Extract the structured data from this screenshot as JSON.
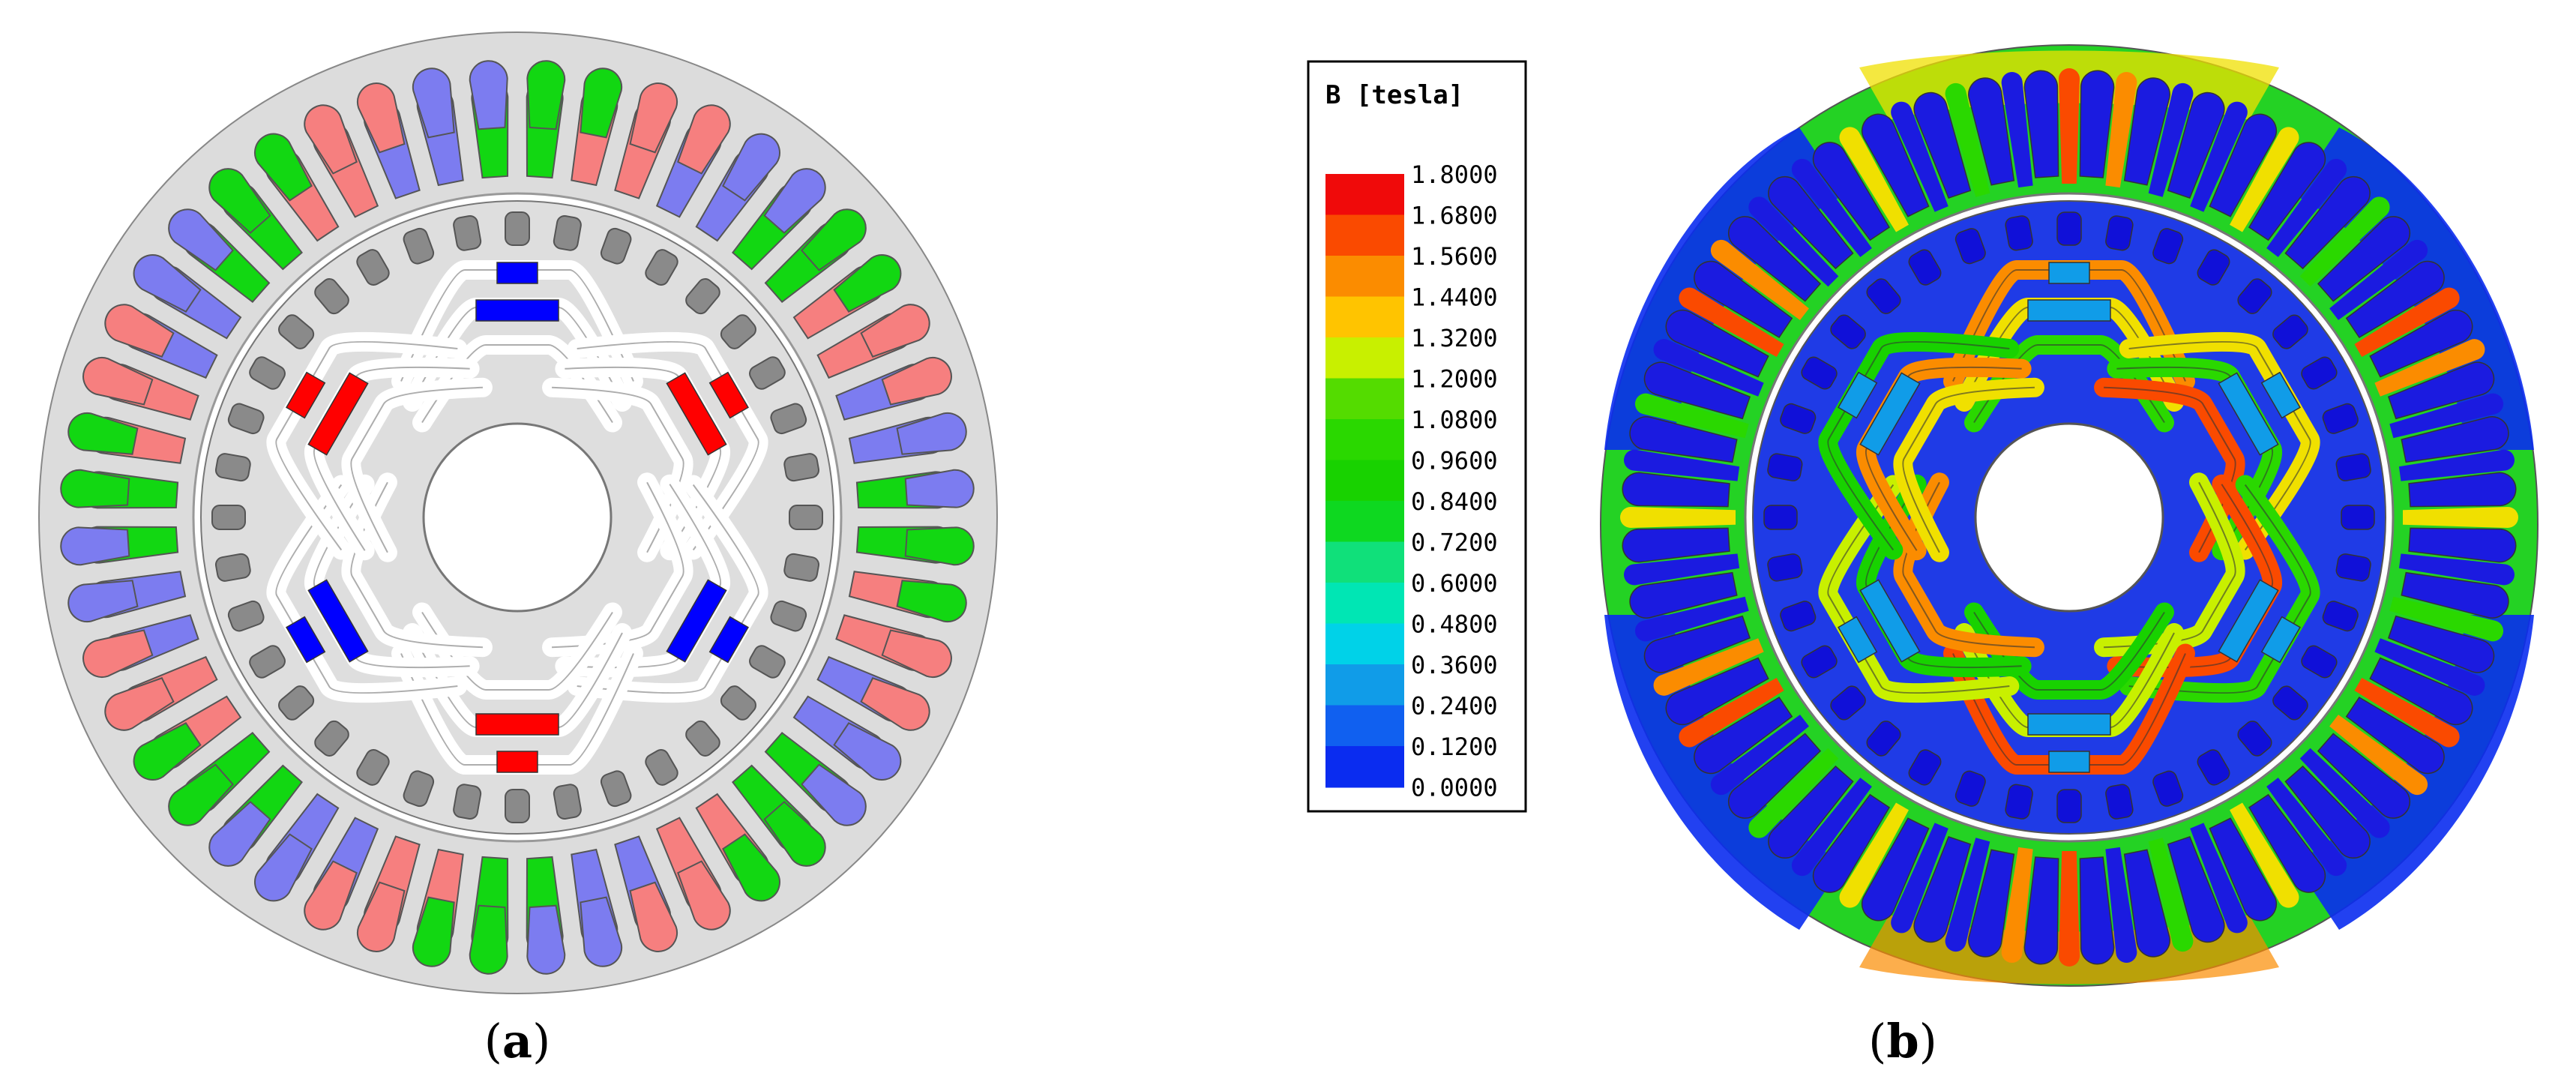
{
  "panels": [
    {
      "label_open": "(",
      "label_letter": "a",
      "label_close": ")"
    },
    {
      "label_open": "(",
      "label_letter": "b",
      "label_close": ")"
    }
  ],
  "legend": {
    "title": "B [tesla]",
    "ticks": [
      "1.8000",
      "1.6800",
      "1.5600",
      "1.4400",
      "1.3200",
      "1.2000",
      "1.0800",
      "0.9600",
      "0.8400",
      "0.7200",
      "0.6000",
      "0.4800",
      "0.3600",
      "0.2400",
      "0.1200",
      "0.0000"
    ],
    "colors": [
      "#f00a0a",
      "#fa4a00",
      "#fb8c00",
      "#ffc400",
      "#c8f000",
      "#54dc00",
      "#2ad800",
      "#18d200",
      "#0ed820",
      "#10e07a",
      "#00e6b4",
      "#00d2e8",
      "#109ce8",
      "#1060f0",
      "#0a2cf0"
    ]
  },
  "motor": {
    "slot_count": 48,
    "phase_colors": {
      "red": "#f67f7f",
      "blue": "#7c7cf0",
      "green": "#12d712"
    },
    "magnet_colors": {
      "north": "#ff0000",
      "south": "#0000ff"
    },
    "lamination_color": "#dcdcdc",
    "flux_colors": {
      "teeth": "#1b1be0",
      "yoke": "#0c3cf0",
      "rotor": "#0c3ce8"
    }
  }
}
